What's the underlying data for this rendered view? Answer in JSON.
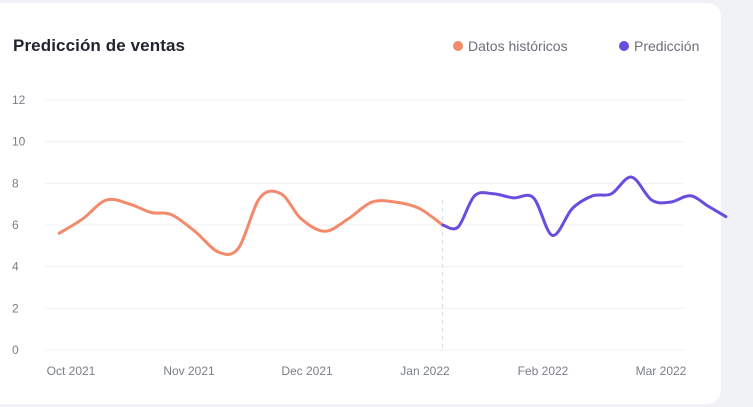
{
  "chart_data": {
    "type": "line",
    "title": "Predicción de ventas",
    "legend_position": "top-right",
    "grid": true,
    "ylim": [
      0,
      12
    ],
    "y_ticks": [
      "0",
      "2",
      "4",
      "6",
      "8",
      "10",
      "12"
    ],
    "x_tick_labels": [
      "Oct 2021",
      "Nov 2021",
      "Dec 2021",
      "Jan 2022",
      "Feb 2022",
      "Mar 2022"
    ],
    "x_tick_positions": [
      0,
      1,
      2,
      3,
      4,
      5
    ],
    "divider_at": 3.15,
    "series": [
      {
        "name": "Datos históricos",
        "color": "#f28a6b",
        "x": [
          -0.1,
          0.1,
          0.3,
          0.5,
          0.68,
          0.85,
          1.05,
          1.25,
          1.42,
          1.6,
          1.78,
          1.95,
          2.15,
          2.35,
          2.55,
          2.75,
          2.95,
          3.15
        ],
        "values": [
          5.6,
          6.3,
          7.2,
          7.0,
          6.6,
          6.5,
          5.7,
          4.7,
          4.9,
          7.3,
          7.5,
          6.3,
          5.7,
          6.3,
          7.1,
          7.1,
          6.8,
          6.0
        ]
      },
      {
        "name": "Predicción",
        "color": "#6a4cdf",
        "x": [
          3.15,
          3.28,
          3.42,
          3.58,
          3.75,
          3.92,
          4.08,
          4.25,
          4.42,
          4.58,
          4.75,
          4.92,
          5.08,
          5.25,
          5.4,
          5.55
        ],
        "values": [
          6.0,
          5.9,
          7.4,
          7.5,
          7.3,
          7.3,
          5.5,
          6.8,
          7.4,
          7.5,
          8.3,
          7.2,
          7.1,
          7.4,
          6.9,
          6.4
        ]
      }
    ]
  }
}
